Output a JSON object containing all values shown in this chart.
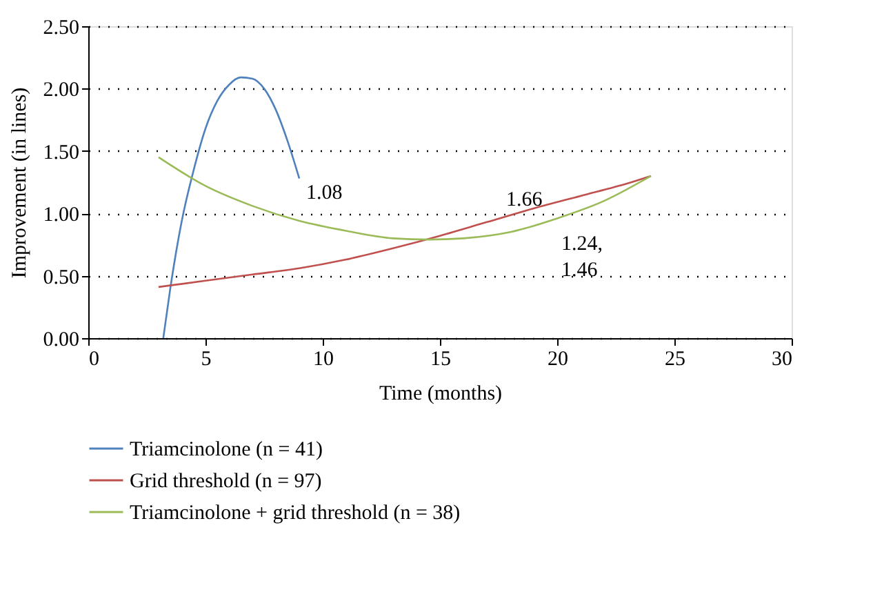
{
  "chart_data": {
    "type": "line",
    "xlabel": "Time (months)",
    "ylabel": "Improvement (in lines)",
    "xlim": [
      0,
      30
    ],
    "xticks": [
      0,
      5,
      10,
      15,
      20,
      25,
      30
    ],
    "ylim": [
      0,
      2.5
    ],
    "yticks": [
      {
        "value": 0,
        "label": "0.00"
      },
      {
        "value": 0.5,
        "label": "0.50"
      },
      {
        "value": 1,
        "label": "1.00"
      },
      {
        "value": 1.5,
        "label": "1.50"
      },
      {
        "value": 2,
        "label": "2.00"
      },
      {
        "value": 2.5,
        "label": "2.50"
      }
    ],
    "grid": "y",
    "legend": "bottom",
    "marker": "none",
    "line_style": "solid",
    "series": [
      {
        "name": "Triamcinolone (n = 41)",
        "color": "#4f81bd",
        "x": [
          3.2,
          3.5,
          4,
          4.5,
          5,
          5.5,
          6,
          6.5,
          7,
          7.5,
          8,
          8.5,
          9
        ],
        "values": [
          0,
          0.4,
          0.95,
          1.35,
          1.68,
          1.9,
          2.03,
          2.09,
          2.08,
          2.0,
          1.83,
          1.58,
          1.28
        ]
      },
      {
        "name": "Grid threshold (n = 97)",
        "color": "#c0504d",
        "x": [
          3,
          5,
          7,
          9,
          11,
          13,
          15,
          17,
          19,
          21,
          23,
          24
        ],
        "values": [
          0.41,
          0.46,
          0.51,
          0.56,
          0.63,
          0.72,
          0.82,
          0.93,
          1.04,
          1.14,
          1.24,
          1.3
        ]
      },
      {
        "name": "Triamcinolone + grid threshold (n = 38)",
        "color": "#9bbb59",
        "x": [
          3,
          5,
          7,
          9,
          11,
          13,
          14.5,
          16,
          18,
          20,
          22,
          24
        ],
        "values": [
          1.45,
          1.22,
          1.06,
          0.94,
          0.86,
          0.8,
          0.79,
          0.8,
          0.85,
          0.96,
          1.1,
          1.3
        ]
      }
    ],
    "annotations": [
      "1.08",
      "1.66",
      "1.24,\n1.46"
    ]
  }
}
